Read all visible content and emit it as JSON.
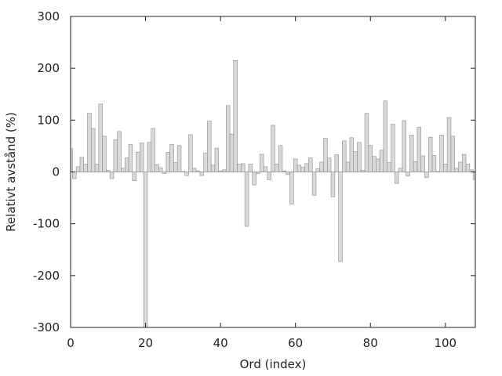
{
  "chart_data": {
    "type": "bar",
    "title": "",
    "xlabel": "Ord (index)",
    "ylabel": "Relativt avstånd (%)",
    "xlim": [
      0,
      108
    ],
    "ylim": [
      -300,
      300
    ],
    "xticks": [
      0,
      20,
      40,
      60,
      80,
      100
    ],
    "yticks": [
      -300,
      -200,
      -100,
      0,
      100,
      200,
      300
    ],
    "grid": false,
    "bar_color": "#d9d9d9",
    "bar_edge_color": "#8c8c8c",
    "x": [
      0,
      1,
      2,
      3,
      4,
      5,
      6,
      7,
      8,
      9,
      10,
      11,
      12,
      13,
      14,
      15,
      16,
      17,
      18,
      19,
      20,
      21,
      22,
      23,
      24,
      25,
      26,
      27,
      28,
      29,
      30,
      31,
      32,
      33,
      34,
      35,
      36,
      37,
      38,
      39,
      40,
      41,
      42,
      43,
      44,
      45,
      46,
      47,
      48,
      49,
      50,
      51,
      52,
      53,
      54,
      55,
      56,
      57,
      58,
      59,
      60,
      61,
      62,
      63,
      64,
      65,
      66,
      67,
      68,
      69,
      70,
      71,
      72,
      73,
      74,
      75,
      76,
      77,
      78,
      79,
      80,
      81,
      82,
      83,
      84,
      85,
      86,
      87,
      88,
      89,
      90,
      91,
      92,
      93,
      94,
      95,
      96,
      97,
      98,
      99,
      100,
      101,
      102,
      103,
      104,
      105,
      106,
      107,
      108
    ],
    "values": [
      45,
      -13,
      10,
      28,
      15,
      113,
      84,
      15,
      131,
      69,
      3,
      -13,
      62,
      78,
      7,
      27,
      53,
      -17,
      38,
      56,
      -300,
      57,
      84,
      14,
      8,
      -3,
      38,
      53,
      18,
      51,
      1,
      -7,
      72,
      7,
      2,
      -7,
      36,
      98,
      13,
      46,
      2,
      4,
      128,
      73,
      215,
      15,
      16,
      -105,
      15,
      -25,
      -3,
      34,
      10,
      -15,
      90,
      15,
      51,
      2,
      -5,
      -62,
      25,
      13,
      9,
      16,
      27,
      -45,
      6,
      19,
      65,
      27,
      -48,
      33,
      -173,
      60,
      19,
      66,
      39,
      57,
      3,
      113,
      51,
      30,
      25,
      42,
      137,
      18,
      92,
      -22,
      7,
      99,
      -8,
      71,
      20,
      86,
      31,
      -11,
      67,
      32,
      1,
      71,
      15,
      105,
      69,
      7,
      19,
      34,
      15,
      4,
      -15
    ]
  }
}
